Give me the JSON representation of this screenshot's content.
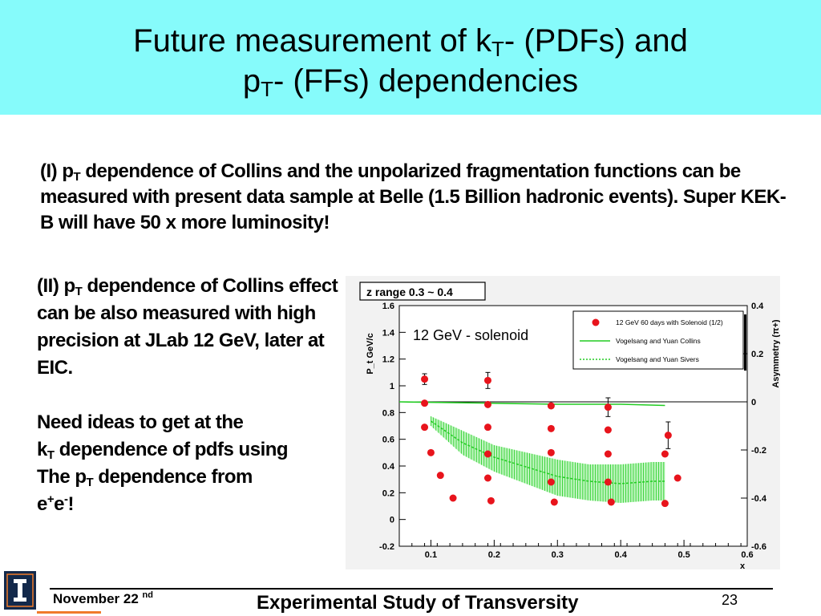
{
  "title": {
    "line1_pre": "Future measurement of k",
    "line1_sub": "T",
    "line1_post": "- (PDFs) and",
    "line2_pre": "p",
    "line2_sub": "T",
    "line2_post": "- (FFs) dependencies"
  },
  "bullet1": {
    "pre": "(I) p",
    "sub": "T",
    "post": " dependence of Collins and the unpolarized fragmentation functions can be measured with present data sample at Belle (1.5 Billion hadronic events). Super KEK-B will have 50 x more luminosity!"
  },
  "bullet2": {
    "a_pre": "(II) p",
    "a_sub": "T",
    "a_post": " dependence of Collins effect can be also measured with high precision at JLab 12 GeV, later at EIC.",
    "b1": "Need ideas to get at the",
    "b2_pre": "k",
    "b2_sub": "T",
    "b2_post": " dependence of pdfs using",
    "b3_pre": "The p",
    "b3_sub": "T",
    "b3_post": " dependence from",
    "b4_e1": "e",
    "b4_plus": "+",
    "b4_e2": "e",
    "b4_minus": "-",
    "b4_end": "!"
  },
  "footer": {
    "date": "November 22",
    "date_sup": "nd",
    "center": "Experimental Study of Transversity",
    "page": "23"
  },
  "colors": {
    "title_band": "#86fbfb",
    "points": "#e8141c",
    "band": "#22cc22",
    "logo": "#13294b",
    "accent": "#f07a2a"
  },
  "chart_data": {
    "type": "scatter",
    "zrange_label": "z range 0.3 ~ 0.4",
    "annotation": "12 GeV - solenoid",
    "xlabel": "x",
    "ylabel_left": "P_t GeV/c",
    "ylabel_right": "Asymmetry (π+)",
    "xlim": [
      0.05,
      0.6
    ],
    "ylim_left": [
      -0.2,
      1.6
    ],
    "ylim_right": [
      -0.6,
      0.4
    ],
    "x_ticks": [
      "0.1",
      "0.2",
      "0.3",
      "0.4",
      "0.5",
      "0.6"
    ],
    "y_left_ticks": [
      "-0.2",
      "0",
      "0.2",
      "0.4",
      "0.6",
      "0.8",
      "1",
      "1.2",
      "1.4",
      "1.6"
    ],
    "y_right_ticks": [
      "-0.6",
      "-0.4",
      "-0.2",
      "0",
      "0.2",
      "0.4"
    ],
    "legend": [
      {
        "name": "12 GeV 60 days with Solenoid (1/2)",
        "kind": "marker"
      },
      {
        "name": "Vogelsang and Yuan Collins",
        "kind": "solid-line"
      },
      {
        "name": "Vogelsang and Yuan Sivers",
        "kind": "dotted-line"
      }
    ],
    "points": [
      {
        "x": 0.09,
        "y": 1.05,
        "err": 0.04
      },
      {
        "x": 0.09,
        "y": 0.87
      },
      {
        "x": 0.09,
        "y": 0.69
      },
      {
        "x": 0.1,
        "y": 0.5
      },
      {
        "x": 0.115,
        "y": 0.33
      },
      {
        "x": 0.135,
        "y": 0.16
      },
      {
        "x": 0.19,
        "y": 1.04,
        "err": 0.06
      },
      {
        "x": 0.19,
        "y": 0.86
      },
      {
        "x": 0.19,
        "y": 0.69
      },
      {
        "x": 0.19,
        "y": 0.49
      },
      {
        "x": 0.19,
        "y": 0.31
      },
      {
        "x": 0.195,
        "y": 0.14
      },
      {
        "x": 0.29,
        "y": 0.85
      },
      {
        "x": 0.29,
        "y": 0.68
      },
      {
        "x": 0.29,
        "y": 0.5
      },
      {
        "x": 0.29,
        "y": 0.28
      },
      {
        "x": 0.295,
        "y": 0.13
      },
      {
        "x": 0.38,
        "y": 0.84,
        "err": 0.07
      },
      {
        "x": 0.38,
        "y": 0.67
      },
      {
        "x": 0.38,
        "y": 0.49
      },
      {
        "x": 0.38,
        "y": 0.28
      },
      {
        "x": 0.385,
        "y": 0.13
      },
      {
        "x": 0.47,
        "y": 0.49
      },
      {
        "x": 0.475,
        "y": 0.63,
        "err": 0.1
      },
      {
        "x": 0.47,
        "y": 0.12
      },
      {
        "x": 0.49,
        "y": 0.31
      }
    ],
    "collins_line": {
      "x": [
        0.05,
        0.18,
        0.3,
        0.4,
        0.47
      ],
      "y": [
        0.0,
        -0.005,
        -0.01,
        -0.01,
        -0.015
      ]
    },
    "sivers_band": {
      "x": [
        0.1,
        0.15,
        0.2,
        0.25,
        0.3,
        0.35,
        0.4,
        0.45,
        0.47
      ],
      "upper": [
        -0.06,
        -0.12,
        -0.18,
        -0.21,
        -0.24,
        -0.26,
        -0.26,
        -0.25,
        -0.25
      ],
      "center": [
        -0.08,
        -0.17,
        -0.23,
        -0.27,
        -0.31,
        -0.33,
        -0.34,
        -0.33,
        -0.33
      ],
      "lower": [
        -0.1,
        -0.22,
        -0.29,
        -0.34,
        -0.39,
        -0.41,
        -0.42,
        -0.41,
        -0.41
      ]
    }
  }
}
